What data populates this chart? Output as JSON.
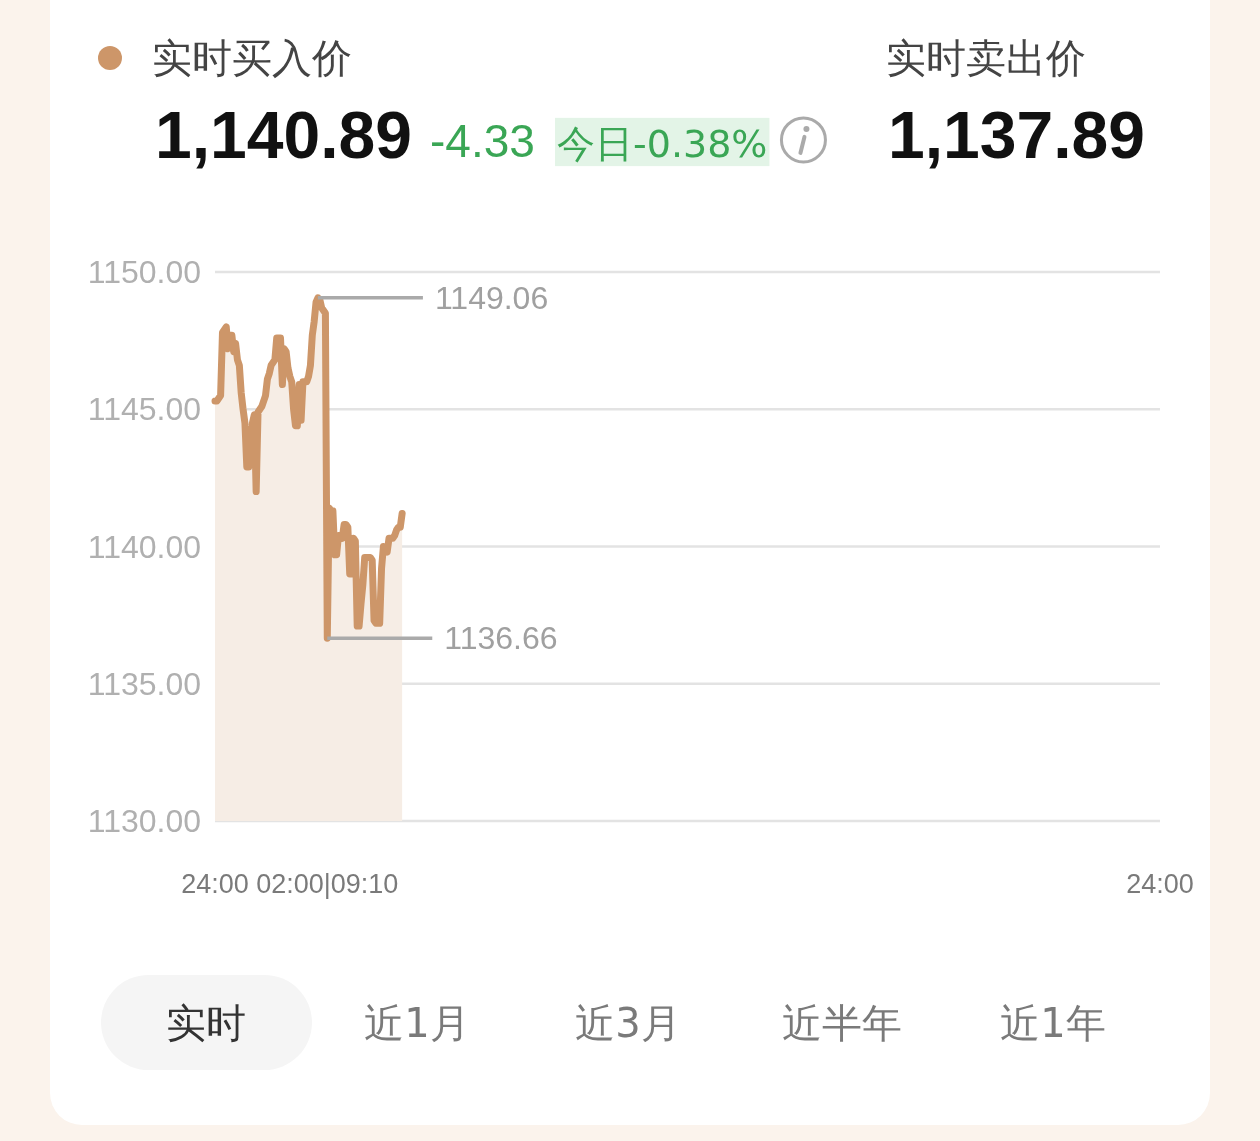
{
  "chart_data": {
    "type": "area",
    "legend": "top left",
    "grid": "y",
    "categories": [
      "24:00",
      null,
      null,
      null,
      null,
      null,
      null,
      null,
      null,
      null,
      null,
      null,
      null,
      null,
      null,
      null,
      null,
      null,
      null,
      null,
      null,
      null,
      null,
      null,
      null,
      null,
      null,
      null,
      null,
      null,
      null,
      null,
      null,
      null,
      null,
      null,
      null,
      null,
      null,
      null,
      null,
      null,
      null,
      null,
      null,
      null,
      null,
      null,
      null,
      null,
      null,
      null,
      null,
      null,
      null,
      null,
      null,
      null,
      null,
      null,
      "02:00|09:10",
      null,
      null,
      null,
      null,
      null,
      null,
      null,
      null,
      null,
      null,
      null,
      null,
      null,
      null,
      null,
      null,
      null,
      null,
      null,
      null,
      null,
      null,
      null,
      null,
      null,
      null,
      null,
      null,
      null,
      null,
      null,
      null,
      null,
      null,
      null,
      null,
      null,
      null,
      null,
      null,
      null,
      null,
      null,
      null,
      null,
      null,
      null,
      null,
      null,
      null,
      null,
      null,
      null,
      null,
      null,
      null,
      null,
      null,
      null,
      null,
      null,
      null,
      null,
      null,
      null,
      null,
      null,
      null,
      null,
      null,
      null,
      null,
      null,
      null,
      null,
      null,
      null,
      null,
      null,
      null,
      null,
      null,
      null,
      null,
      null,
      null,
      null,
      null,
      null,
      null,
      null,
      null,
      null,
      null,
      null,
      null,
      null,
      null,
      null,
      null,
      null,
      null,
      null,
      null,
      null,
      null,
      null,
      null,
      null,
      null,
      null,
      null,
      null,
      null,
      null,
      null,
      null,
      null,
      null,
      null,
      null,
      null,
      null,
      null,
      null,
      null,
      null,
      null,
      null,
      null,
      null,
      null,
      null,
      null,
      null,
      null,
      null,
      null,
      null,
      null,
      null,
      null,
      null,
      null,
      null,
      null,
      null,
      null,
      null,
      null,
      null,
      null,
      null,
      null,
      null,
      null,
      null,
      null,
      null,
      null,
      null,
      null,
      null,
      null,
      null,
      null,
      null,
      null,
      null,
      null,
      null,
      null,
      null,
      null,
      null,
      null,
      null,
      null,
      null,
      null,
      null,
      null,
      null,
      null,
      null,
      null,
      null,
      null,
      null,
      null,
      null,
      null,
      null,
      null,
      null,
      null,
      null,
      null,
      null,
      null,
      null,
      null,
      null,
      null,
      null,
      null,
      null,
      null,
      null,
      null,
      null,
      null,
      null,
      null,
      null,
      null,
      null,
      null,
      null,
      null,
      null,
      null,
      null,
      null,
      null,
      null,
      null,
      null,
      null,
      null,
      null,
      null,
      null,
      null,
      null,
      null,
      null,
      null,
      null,
      null,
      null,
      null,
      null,
      null,
      null,
      null,
      null,
      null,
      null,
      null,
      null,
      null,
      null,
      null,
      null,
      null,
      null,
      null,
      null,
      null,
      null,
      null,
      null,
      null,
      null,
      null,
      null,
      null,
      null,
      null,
      null,
      null,
      null,
      null,
      null,
      null,
      null,
      null,
      null,
      null,
      null,
      null,
      null,
      null,
      null,
      null,
      null,
      null,
      null,
      null,
      null,
      null,
      null,
      null,
      null,
      null,
      null,
      null,
      null,
      null,
      null,
      null,
      null,
      null,
      null,
      null,
      null,
      null,
      null,
      null,
      null,
      null,
      null,
      null,
      null,
      null,
      null,
      null,
      null,
      null,
      null,
      null,
      null,
      null,
      null,
      null,
      null,
      null,
      null,
      null,
      null,
      null,
      null,
      null,
      null,
      null,
      null,
      null,
      null,
      null,
      null,
      null,
      null,
      null,
      null,
      null,
      null,
      null,
      null,
      null,
      null,
      null,
      null,
      null,
      null,
      null,
      null,
      null,
      null,
      null,
      null,
      null,
      null,
      null,
      null,
      null,
      null,
      null,
      null,
      null,
      null,
      null,
      null,
      null,
      null,
      null,
      null,
      null,
      null,
      null,
      null,
      null,
      null,
      null,
      null,
      null,
      null,
      null,
      null,
      null,
      null,
      null,
      null,
      null,
      null,
      null,
      null,
      null,
      null,
      null,
      null,
      null,
      null,
      null,
      null,
      null,
      null,
      null,
      null,
      null,
      null,
      null,
      null,
      null,
      null,
      null,
      null,
      null,
      null,
      null,
      null,
      null,
      null,
      null,
      null,
      null,
      null,
      null,
      null,
      null,
      null,
      null,
      null,
      null,
      null,
      null,
      null,
      null,
      null,
      null,
      null,
      null,
      null,
      null,
      "24:00"
    ],
    "series": [
      {
        "name": "实时买入价",
        "color": "#cd9669",
        "values": [
          1145.3,
          1145.3,
          1145.4,
          1145.5,
          1147.8,
          1147.9,
          1148.0,
          1147.2,
          1147.7,
          1147.7,
          1147.1,
          1147.4,
          1146.8,
          1146.6,
          1145.6,
          1145.0,
          1144.5,
          1142.9,
          1142.9,
          1143.9,
          1144.5,
          1144.8,
          1142.0,
          1144.9,
          1145.0,
          1145.1,
          1145.3,
          1145.5,
          1146.1,
          1146.3,
          1146.6,
          1146.7,
          1146.8,
          1147.6,
          1147.6,
          1147.6,
          1145.9,
          1147.2,
          1147.1,
          1146.5,
          1146.2,
          1146.0,
          1145.0,
          1144.4,
          1144.4,
          1145.9,
          1144.6,
          1146.0,
          1146.0,
          1146.0,
          1146.2,
          1146.6,
          1147.7,
          1148.2,
          1148.9,
          1149.06,
          1149.0,
          1148.7,
          1148.6,
          1148.5,
          1136.66,
          1141.4,
          1141.3,
          1141.3,
          1139.7,
          1139.7,
          1140.4,
          1140.4,
          1140.3,
          1140.8,
          1140.8,
          1140.7,
          1139.0,
          1139.0,
          1140.3,
          1140.2,
          1137.1,
          1137.1,
          1137.9,
          1138.6,
          1139.6,
          1139.6,
          1139.6,
          1139.6,
          1139.5,
          1137.3,
          1137.2,
          1137.2,
          1137.2,
          1139.2,
          1140.0,
          1139.9,
          1139.8,
          1140.3,
          1140.3,
          1140.3,
          1140.4,
          1140.6,
          1140.7,
          1140.7,
          1141.2,
          null,
          null,
          null,
          null,
          null,
          null,
          null,
          null,
          null,
          null,
          null,
          null,
          null,
          null,
          null,
          null,
          null,
          null,
          null,
          null,
          null,
          null,
          null,
          null,
          null,
          null,
          null,
          null,
          null,
          null,
          null,
          null,
          null,
          null,
          null,
          null,
          null,
          null,
          null,
          null,
          null,
          null,
          null,
          null,
          null,
          null,
          null,
          null,
          null,
          null,
          null,
          null,
          null,
          null,
          null,
          null,
          null,
          null,
          null,
          null,
          null,
          null,
          null,
          null,
          null,
          null,
          null,
          null,
          null,
          null,
          null,
          null,
          null,
          null,
          null,
          null,
          null,
          null,
          null,
          null,
          null,
          null,
          null,
          null,
          null,
          null,
          null,
          null,
          null,
          null,
          null,
          null,
          null,
          null,
          null,
          null,
          null,
          null,
          null,
          null,
          null,
          null,
          null,
          null,
          null,
          null,
          null,
          null,
          null,
          null,
          null,
          null,
          null,
          null,
          null,
          null,
          null,
          null,
          null,
          null,
          null,
          null,
          null,
          null,
          null,
          null,
          null,
          null,
          null,
          null,
          null,
          null,
          null,
          null,
          null,
          null,
          null,
          null,
          null,
          null,
          null,
          null,
          null,
          null,
          null,
          null,
          null,
          null,
          null,
          null,
          null,
          null,
          null,
          null,
          null,
          null,
          null,
          null,
          null,
          null,
          null,
          null,
          null,
          null,
          null,
          null,
          null,
          null,
          null,
          null,
          null,
          null,
          null,
          null,
          null,
          null,
          null,
          null,
          null,
          null,
          null,
          null,
          null,
          null,
          null,
          null,
          null,
          null,
          null,
          null,
          null,
          null,
          null,
          null,
          null,
          null,
          null,
          null,
          null,
          null,
          null,
          null,
          null,
          null,
          null,
          null,
          null,
          null,
          null,
          null,
          null,
          null,
          null,
          null,
          null,
          null,
          null,
          null,
          null,
          null,
          null,
          null,
          null,
          null,
          null,
          null,
          null,
          null,
          null,
          null,
          null,
          null,
          null,
          null,
          null,
          null,
          null,
          null,
          null,
          null,
          null,
          null,
          null,
          null,
          null,
          null,
          null,
          null,
          null,
          null,
          null,
          null,
          null,
          null,
          null,
          null,
          null,
          null,
          null,
          null,
          null,
          null,
          null,
          null,
          null,
          null,
          null,
          null,
          null,
          null,
          null,
          null,
          null,
          null,
          null,
          null,
          null,
          null,
          null,
          null,
          null,
          null,
          null,
          null,
          null,
          null,
          null,
          null,
          null,
          null,
          null,
          null,
          null,
          null,
          null,
          null,
          null,
          null,
          null,
          null,
          null,
          null,
          null,
          null,
          null,
          null,
          null,
          null,
          null,
          null,
          null,
          null,
          null,
          null,
          null,
          null,
          null,
          null,
          null,
          null,
          null,
          null,
          null,
          null,
          null,
          null,
          null,
          null,
          null,
          null,
          null,
          null,
          null,
          null,
          null,
          null,
          null,
          null,
          null,
          null,
          null,
          null,
          null,
          null,
          null,
          null,
          null,
          null,
          null,
          null,
          null,
          null,
          null,
          null,
          null,
          null,
          null,
          null,
          null,
          null,
          null,
          null,
          null,
          null,
          null,
          null,
          null,
          null,
          null,
          null,
          null,
          null,
          null,
          null,
          null,
          null,
          null,
          null,
          null,
          null,
          null,
          null,
          null,
          null,
          null,
          null,
          null,
          null,
          null,
          null,
          null,
          null,
          null,
          null,
          null,
          null,
          null,
          null,
          null,
          null,
          null,
          null,
          null,
          null,
          null
        ],
        "value_labels": [
          null,
          null,
          null,
          null,
          null,
          null,
          null,
          null,
          null,
          null,
          null,
          null,
          null,
          null,
          null,
          null,
          null,
          null,
          null,
          null,
          null,
          null,
          null,
          null,
          null,
          null,
          null,
          null,
          null,
          null,
          null,
          null,
          null,
          null,
          null,
          null,
          null,
          null,
          null,
          null,
          null,
          null,
          null,
          null,
          null,
          null,
          null,
          null,
          null,
          null,
          null,
          null,
          null,
          null,
          null,
          "1149.06",
          null,
          null,
          null,
          null,
          "1136.66",
          null,
          null,
          null,
          null,
          null,
          null,
          null,
          null,
          null,
          null,
          null,
          null,
          null,
          null,
          null,
          null,
          null,
          null,
          null,
          null,
          null,
          null,
          null,
          null,
          null,
          null,
          null,
          null,
          null,
          null,
          null,
          null,
          null,
          null,
          null,
          null,
          null,
          null,
          null,
          null,
          null,
          null,
          null,
          null,
          null,
          null,
          null,
          null,
          null,
          null,
          null,
          null,
          null,
          null,
          null,
          null,
          null,
          null,
          null,
          null,
          null,
          null,
          null,
          null,
          null,
          null,
          null,
          null,
          null,
          null,
          null,
          null,
          null,
          null,
          null,
          null,
          null,
          null,
          null,
          null,
          null,
          null,
          null,
          null,
          null,
          null,
          null,
          null,
          null,
          null,
          null,
          null,
          null,
          null,
          null,
          null,
          null,
          null,
          null,
          null,
          null,
          null,
          null,
          null,
          null,
          null,
          null,
          null,
          null,
          null,
          null,
          null,
          null,
          null,
          null,
          null,
          null,
          null,
          null,
          null,
          null,
          null,
          null,
          null,
          null,
          null,
          null,
          null,
          null,
          null,
          null,
          null,
          null,
          null,
          null,
          null,
          null,
          null,
          null,
          null,
          null,
          null,
          null,
          null,
          null,
          null,
          null,
          null,
          null,
          null,
          null,
          null,
          null,
          null,
          null,
          null,
          null,
          null,
          null,
          null,
          null,
          null,
          null,
          null,
          null,
          null,
          null,
          null,
          null,
          null,
          null,
          null,
          null,
          null,
          null,
          null,
          null,
          null,
          null,
          null,
          null,
          null,
          null,
          null,
          null,
          null,
          null,
          null,
          null,
          null,
          null,
          null,
          null,
          null,
          null,
          null,
          null,
          null,
          null,
          null,
          null,
          null,
          null,
          null,
          null,
          null,
          null,
          null,
          null,
          null,
          null,
          null,
          null,
          null,
          null,
          null,
          null,
          null,
          null,
          null,
          null,
          null,
          null,
          null,
          null,
          null,
          null,
          null,
          null,
          null,
          null,
          null,
          null,
          null,
          null,
          null,
          null,
          null,
          null,
          null,
          null,
          null,
          null,
          null,
          null,
          null,
          null,
          null,
          null,
          null,
          null,
          null,
          null,
          null,
          null,
          null,
          null,
          null,
          null,
          null,
          null,
          null,
          null,
          null,
          null,
          null,
          null,
          null,
          null,
          null,
          null,
          null,
          null,
          null,
          null,
          null,
          null,
          null,
          null,
          null,
          null,
          null,
          null,
          null,
          null,
          null,
          null,
          null,
          null,
          null,
          null,
          null,
          null,
          null,
          null,
          null,
          null,
          null,
          null,
          null,
          null,
          null,
          null,
          null,
          null,
          null,
          null,
          null,
          null,
          null,
          null,
          null,
          null,
          null,
          null,
          null,
          null,
          null,
          null,
          null,
          null,
          null,
          null,
          null,
          null,
          null,
          null,
          null,
          null,
          null,
          null,
          null,
          null,
          null,
          null,
          null,
          null,
          null,
          null,
          null,
          null,
          null,
          null,
          null,
          null,
          null,
          null,
          null,
          null,
          null,
          null,
          null,
          null,
          null,
          null,
          null,
          null,
          null,
          null,
          null,
          null,
          null,
          null,
          null,
          null,
          null,
          null,
          null,
          null,
          null,
          null,
          null,
          null,
          null,
          null,
          null,
          null,
          null,
          null,
          null,
          null,
          null,
          null,
          null,
          null,
          null,
          null,
          null,
          null,
          null,
          null,
          null,
          null,
          null,
          null,
          null,
          null,
          null,
          null,
          null,
          null,
          null,
          null,
          null,
          null,
          null,
          null,
          null,
          null,
          null,
          null,
          null,
          null,
          null,
          null,
          null,
          null,
          null,
          null,
          null,
          null,
          null,
          null,
          null,
          null,
          null,
          null,
          null,
          null,
          null,
          null,
          null,
          null,
          null,
          null,
          null,
          null,
          null,
          null,
          null,
          null,
          null,
          null,
          null,
          null
        ]
      }
    ],
    "ylim": [
      1130,
      1150
    ],
    "yticks": [
      {
        "value": 1130,
        "label": "1130.00"
      },
      {
        "value": 1135,
        "label": "1135.00"
      },
      {
        "value": 1140,
        "label": "1140.00"
      },
      {
        "value": 1145,
        "label": "1145.00"
      },
      {
        "value": 1150,
        "label": "1150.00"
      }
    ],
    "annotations": [
      "1,140.89",
      "-4.33",
      "今日-0.38%",
      "实时卖出价",
      "1,137.89",
      "实时",
      "近1月",
      "近3月",
      "近半年",
      "近1年"
    ]
  }
}
